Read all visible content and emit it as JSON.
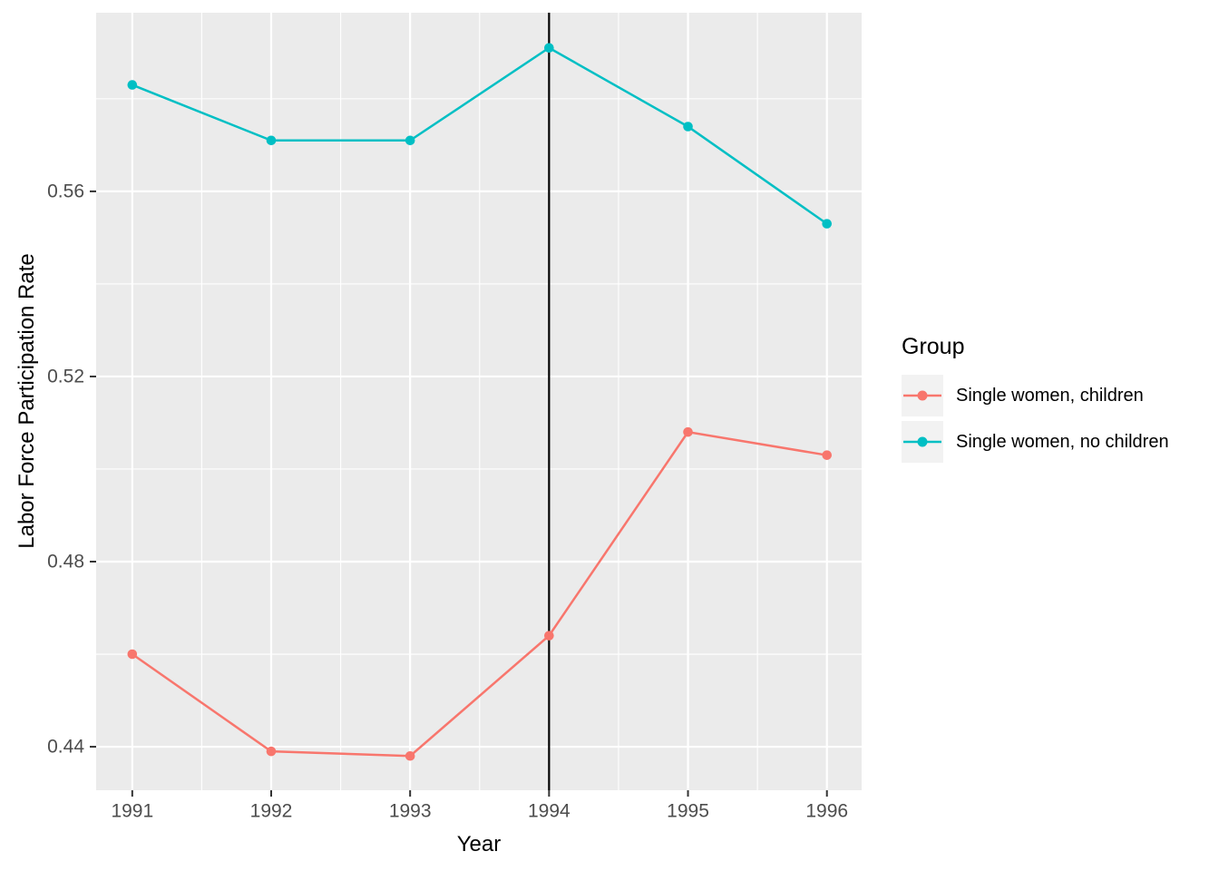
{
  "chart_data": {
    "type": "line",
    "title": "",
    "xlabel": "Year",
    "ylabel": "Labor Force Participation Rate",
    "legend_title": "Group",
    "legend_position": "right",
    "grid": true,
    "panel_background": "#EBEBEB",
    "grid_color": "#FFFFFF",
    "tick_label_color": "#4D4D4D",
    "tick_mark_color": "#333333",
    "vline_color": "#000000",
    "legend_key_background": "#F2F2F2",
    "x": [
      1991,
      1992,
      1993,
      1994,
      1995,
      1996
    ],
    "series": [
      {
        "name": "Single women, children",
        "color": "#F8766D",
        "values": [
          0.46,
          0.439,
          0.438,
          0.464,
          0.508,
          0.503
        ]
      },
      {
        "name": "Single women, no children",
        "color": "#00BFC4",
        "values": [
          0.583,
          0.571,
          0.571,
          0.591,
          0.574,
          0.553
        ]
      }
    ],
    "vline_x": 1994,
    "xlim": [
      1990.74,
      1996.25
    ],
    "ylim": [
      0.4306,
      0.5986
    ],
    "x_ticks": [
      1991,
      1992,
      1993,
      1994,
      1995,
      1996
    ],
    "x_tick_labels": [
      "1991",
      "1992",
      "1993",
      "1994",
      "1995",
      "1996"
    ],
    "y_ticks": [
      0.44,
      0.48,
      0.52,
      0.56
    ],
    "y_tick_labels": [
      "0.44",
      "0.48",
      "0.52",
      "0.56"
    ],
    "x_minor_ticks": [
      1991.5,
      1992.5,
      1993.5,
      1994.5,
      1995.5
    ],
    "y_minor_ticks": [
      0.46,
      0.5,
      0.54,
      0.58
    ]
  }
}
